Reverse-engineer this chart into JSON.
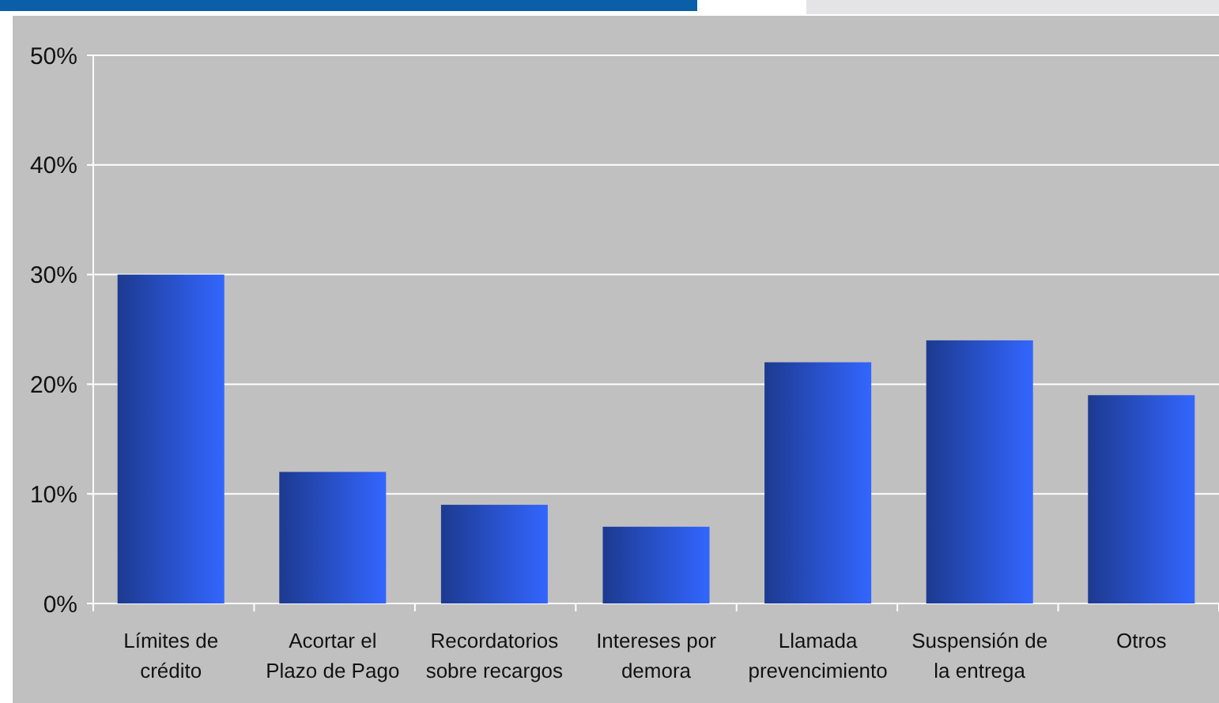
{
  "chart_data": {
    "type": "bar",
    "categories": [
      "Límites de crédito",
      "Acortar el Plazo de Pago",
      "Recordatorios sobre recargos",
      "Intereses por demora",
      "Llamada prevencimiento",
      "Suspensión de la entrega",
      "Otros"
    ],
    "values": [
      30,
      12,
      9,
      7,
      22,
      24,
      19
    ],
    "color": "#3366ff",
    "ylim": [
      0,
      50
    ],
    "yticks": [
      {
        "value": 0,
        "label": "0%"
      },
      {
        "value": 10,
        "label": "10%"
      },
      {
        "value": 20,
        "label": "20%"
      },
      {
        "value": 30,
        "label": "30%"
      },
      {
        "value": 40,
        "label": "40%"
      },
      {
        "value": 50,
        "label": "50%"
      }
    ],
    "grid": "y"
  }
}
